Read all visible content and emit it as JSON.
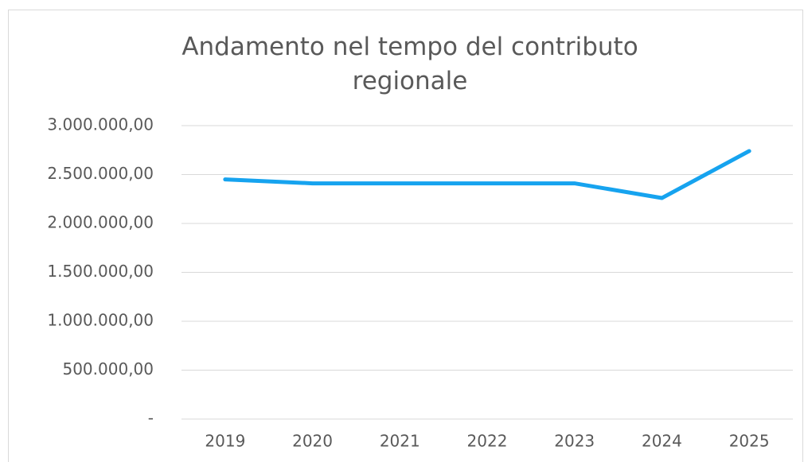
{
  "chart_data": {
    "type": "line",
    "title": "Andamento nel tempo del contributo regionale",
    "categories": [
      "2019",
      "2020",
      "2021",
      "2022",
      "2023",
      "2024",
      "2025"
    ],
    "series": [
      {
        "color": "#16a3ef",
        "values": [
          2450000,
          2410000,
          2410000,
          2410000,
          2410000,
          2260000,
          2740000
        ]
      }
    ],
    "ylim": [
      0,
      3000000
    ],
    "yticks": [
      {
        "value": 0,
        "label": "-"
      },
      {
        "value": 500000,
        "label": "500.000,00"
      },
      {
        "value": 1000000,
        "label": "1.000.000,00"
      },
      {
        "value": 1500000,
        "label": "1.500.000,00"
      },
      {
        "value": 2000000,
        "label": "2.000.000,00"
      },
      {
        "value": 2500000,
        "label": "2.500.000,00"
      },
      {
        "value": 3000000,
        "label": "3.000.000,00"
      }
    ],
    "grid": true
  }
}
